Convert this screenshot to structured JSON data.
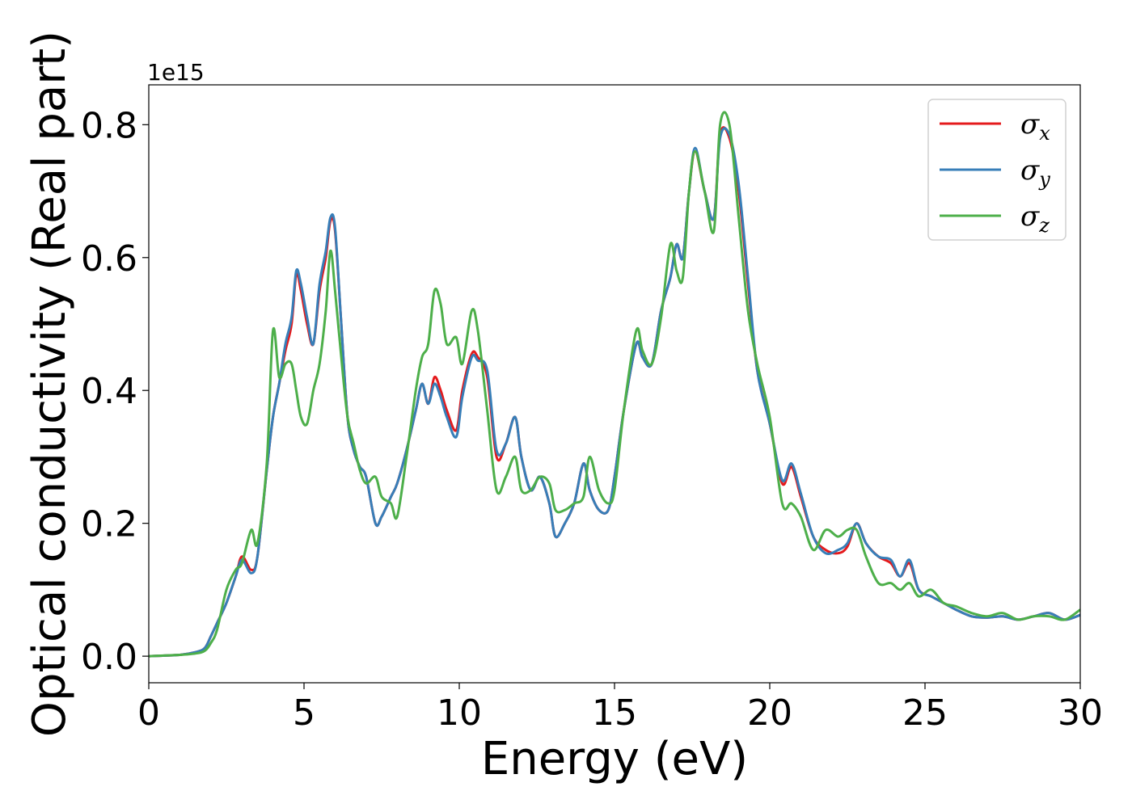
{
  "chart_data": {
    "type": "line",
    "xlabel": "Energy (eV)",
    "ylabel": "Optical conductivity (Real part)",
    "y_offset_label": "1e15",
    "xlim": [
      0,
      30
    ],
    "ylim": [
      -0.04,
      0.86
    ],
    "x_ticks": [
      0,
      5,
      10,
      15,
      20,
      25,
      30
    ],
    "x_tick_labels": [
      "0",
      "5",
      "10",
      "15",
      "20",
      "25",
      "30"
    ],
    "y_ticks": [
      0.0,
      0.2,
      0.4,
      0.6,
      0.8
    ],
    "y_tick_labels": [
      "0.0",
      "0.2",
      "0.4",
      "0.6",
      "0.8"
    ],
    "grid": false,
    "legend_position": "top-right",
    "series": [
      {
        "name": "σx",
        "legend_symbol": "σ",
        "legend_subscript": "x",
        "color": "#e41a1c",
        "x": [
          0,
          1,
          1.5,
          1.8,
          2.0,
          2.2,
          2.5,
          2.8,
          3.0,
          3.3,
          3.5,
          3.8,
          4.0,
          4.2,
          4.4,
          4.6,
          4.75,
          4.9,
          5.1,
          5.3,
          5.5,
          5.7,
          5.85,
          6.0,
          6.2,
          6.4,
          6.6,
          6.8,
          7.0,
          7.3,
          7.5,
          7.8,
          8.0,
          8.3,
          8.6,
          8.8,
          9.0,
          9.2,
          9.4,
          9.6,
          9.9,
          10.1,
          10.4,
          10.6,
          10.9,
          11.2,
          11.5,
          11.8,
          12.0,
          12.3,
          12.6,
          12.9,
          13.1,
          13.4,
          13.7,
          14.0,
          14.2,
          14.5,
          14.8,
          15.0,
          15.3,
          15.7,
          15.9,
          16.2,
          16.5,
          16.8,
          17.0,
          17.2,
          17.4,
          17.6,
          17.9,
          18.2,
          18.4,
          18.7,
          19.0,
          19.3,
          19.6,
          20.0,
          20.4,
          20.7,
          21.0,
          21.4,
          21.8,
          22.2,
          22.5,
          22.8,
          23.1,
          23.5,
          23.9,
          24.2,
          24.5,
          24.8,
          25.2,
          25.6,
          26.0,
          26.5,
          27.0,
          27.5,
          28.0,
          28.5,
          29.0,
          29.5,
          30.0
        ],
        "values": [
          0.0,
          0.002,
          0.006,
          0.012,
          0.03,
          0.05,
          0.08,
          0.12,
          0.15,
          0.13,
          0.15,
          0.28,
          0.36,
          0.41,
          0.46,
          0.5,
          0.575,
          0.55,
          0.5,
          0.47,
          0.55,
          0.6,
          0.655,
          0.64,
          0.5,
          0.36,
          0.31,
          0.285,
          0.27,
          0.2,
          0.21,
          0.24,
          0.26,
          0.31,
          0.37,
          0.41,
          0.38,
          0.42,
          0.4,
          0.37,
          0.34,
          0.4,
          0.455,
          0.45,
          0.42,
          0.3,
          0.32,
          0.36,
          0.3,
          0.25,
          0.27,
          0.23,
          0.18,
          0.2,
          0.23,
          0.29,
          0.25,
          0.22,
          0.22,
          0.27,
          0.37,
          0.47,
          0.45,
          0.44,
          0.52,
          0.57,
          0.62,
          0.6,
          0.7,
          0.76,
          0.7,
          0.66,
          0.785,
          0.78,
          0.7,
          0.56,
          0.43,
          0.35,
          0.26,
          0.285,
          0.24,
          0.18,
          0.16,
          0.155,
          0.165,
          0.2,
          0.17,
          0.15,
          0.14,
          0.12,
          0.14,
          0.1,
          0.09,
          0.08,
          0.07,
          0.06,
          0.058,
          0.06,
          0.055,
          0.06,
          0.065,
          0.055,
          0.062
        ]
      },
      {
        "name": "σy",
        "legend_symbol": "σ",
        "legend_subscript": "y",
        "color": "#377eb8",
        "x": [
          0,
          1,
          1.5,
          1.8,
          2.0,
          2.2,
          2.5,
          2.8,
          3.0,
          3.3,
          3.5,
          3.8,
          4.0,
          4.2,
          4.4,
          4.6,
          4.75,
          4.9,
          5.1,
          5.3,
          5.5,
          5.7,
          5.85,
          6.0,
          6.2,
          6.4,
          6.6,
          6.8,
          7.0,
          7.3,
          7.5,
          7.8,
          8.0,
          8.3,
          8.6,
          8.8,
          9.0,
          9.2,
          9.4,
          9.6,
          9.9,
          10.1,
          10.4,
          10.6,
          10.9,
          11.2,
          11.5,
          11.8,
          12.0,
          12.3,
          12.6,
          12.9,
          13.1,
          13.4,
          13.7,
          14.0,
          14.2,
          14.5,
          14.8,
          15.0,
          15.3,
          15.7,
          15.9,
          16.2,
          16.5,
          16.8,
          17.0,
          17.2,
          17.4,
          17.6,
          17.9,
          18.2,
          18.4,
          18.7,
          19.0,
          19.3,
          19.6,
          20.0,
          20.4,
          20.7,
          21.0,
          21.4,
          21.8,
          22.2,
          22.5,
          22.8,
          23.1,
          23.5,
          23.9,
          24.2,
          24.5,
          24.8,
          25.2,
          25.6,
          26.0,
          26.5,
          27.0,
          27.5,
          28.0,
          28.5,
          29.0,
          29.5,
          30.0
        ],
        "values": [
          0.0,
          0.002,
          0.006,
          0.012,
          0.03,
          0.05,
          0.08,
          0.12,
          0.145,
          0.125,
          0.15,
          0.28,
          0.36,
          0.41,
          0.47,
          0.51,
          0.58,
          0.56,
          0.51,
          0.47,
          0.56,
          0.61,
          0.66,
          0.645,
          0.5,
          0.36,
          0.31,
          0.285,
          0.27,
          0.2,
          0.21,
          0.24,
          0.26,
          0.31,
          0.37,
          0.41,
          0.38,
          0.41,
          0.39,
          0.36,
          0.33,
          0.39,
          0.45,
          0.445,
          0.43,
          0.31,
          0.32,
          0.36,
          0.3,
          0.25,
          0.27,
          0.23,
          0.18,
          0.2,
          0.23,
          0.29,
          0.25,
          0.22,
          0.22,
          0.27,
          0.37,
          0.47,
          0.45,
          0.44,
          0.52,
          0.57,
          0.62,
          0.6,
          0.7,
          0.765,
          0.7,
          0.66,
          0.78,
          0.785,
          0.71,
          0.57,
          0.43,
          0.35,
          0.265,
          0.29,
          0.245,
          0.18,
          0.155,
          0.16,
          0.17,
          0.2,
          0.17,
          0.15,
          0.145,
          0.12,
          0.145,
          0.1,
          0.09,
          0.08,
          0.07,
          0.06,
          0.058,
          0.06,
          0.055,
          0.06,
          0.065,
          0.055,
          0.062
        ]
      },
      {
        "name": "σz",
        "legend_symbol": "σ",
        "legend_subscript": "z",
        "color": "#4daf4a",
        "x": [
          0,
          1,
          1.5,
          1.8,
          2.0,
          2.2,
          2.5,
          2.8,
          3.0,
          3.3,
          3.5,
          3.8,
          4.0,
          4.2,
          4.4,
          4.6,
          4.75,
          4.9,
          5.1,
          5.3,
          5.5,
          5.7,
          5.85,
          6.0,
          6.2,
          6.4,
          6.6,
          6.8,
          7.0,
          7.3,
          7.5,
          7.8,
          8.0,
          8.3,
          8.6,
          8.8,
          9.0,
          9.2,
          9.4,
          9.6,
          9.9,
          10.1,
          10.4,
          10.6,
          10.9,
          11.2,
          11.5,
          11.8,
          12.0,
          12.3,
          12.6,
          12.9,
          13.1,
          13.4,
          13.7,
          14.0,
          14.2,
          14.5,
          14.8,
          15.0,
          15.3,
          15.7,
          15.9,
          16.2,
          16.5,
          16.8,
          17.0,
          17.2,
          17.4,
          17.6,
          17.9,
          18.2,
          18.4,
          18.7,
          19.0,
          19.3,
          19.6,
          20.0,
          20.4,
          20.7,
          21.0,
          21.4,
          21.8,
          22.2,
          22.5,
          22.8,
          23.1,
          23.5,
          23.9,
          24.2,
          24.5,
          24.8,
          25.2,
          25.6,
          26.0,
          26.5,
          27.0,
          27.5,
          28.0,
          28.5,
          29.0,
          29.5,
          30.0
        ],
        "values": [
          0.0,
          0.002,
          0.004,
          0.008,
          0.02,
          0.04,
          0.1,
          0.13,
          0.14,
          0.19,
          0.17,
          0.29,
          0.49,
          0.42,
          0.44,
          0.44,
          0.4,
          0.36,
          0.35,
          0.4,
          0.44,
          0.52,
          0.61,
          0.55,
          0.45,
          0.36,
          0.32,
          0.28,
          0.26,
          0.27,
          0.24,
          0.23,
          0.21,
          0.3,
          0.4,
          0.45,
          0.47,
          0.55,
          0.53,
          0.47,
          0.48,
          0.44,
          0.52,
          0.49,
          0.37,
          0.25,
          0.27,
          0.3,
          0.25,
          0.25,
          0.27,
          0.26,
          0.22,
          0.22,
          0.23,
          0.24,
          0.3,
          0.25,
          0.23,
          0.25,
          0.37,
          0.49,
          0.46,
          0.44,
          0.51,
          0.62,
          0.58,
          0.57,
          0.7,
          0.76,
          0.7,
          0.64,
          0.8,
          0.8,
          0.66,
          0.52,
          0.44,
          0.36,
          0.23,
          0.23,
          0.21,
          0.16,
          0.19,
          0.18,
          0.19,
          0.19,
          0.15,
          0.11,
          0.11,
          0.1,
          0.11,
          0.09,
          0.1,
          0.08,
          0.075,
          0.065,
          0.06,
          0.065,
          0.055,
          0.06,
          0.06,
          0.055,
          0.07
        ]
      }
    ]
  }
}
